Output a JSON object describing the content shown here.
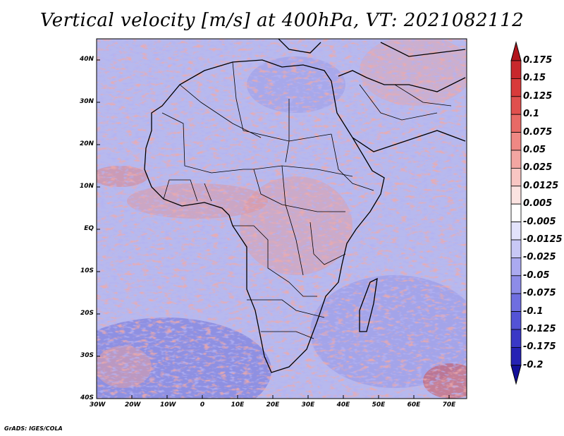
{
  "title": "Vertical velocity [m/s] at 400hPa, VT: 2021082112",
  "footer": "GrADS: IGES/COLA",
  "map": {
    "lat_labels": [
      "40N",
      "30N",
      "20N",
      "10N",
      "EQ",
      "10S",
      "20S",
      "30S",
      "40S"
    ],
    "lon_labels": [
      "30W",
      "20W",
      "10W",
      "0",
      "10E",
      "20E",
      "30E",
      "40E",
      "50E",
      "60E",
      "70E"
    ],
    "lat_range": [
      -40,
      45
    ],
    "lon_range": [
      -30,
      75
    ]
  },
  "colorbar": {
    "labels": [
      "0.175",
      "0.15",
      "0.125",
      "0.1",
      "0.075",
      "0.05",
      "0.025",
      "0.0125",
      "0.005",
      "-0.005",
      "-0.0125",
      "-0.025",
      "-0.05",
      "-0.075",
      "-0.1",
      "-0.125",
      "-0.175",
      "-0.2"
    ],
    "colors": [
      "#b2151d",
      "#c8282c",
      "#d83b3b",
      "#e0504e",
      "#e86a66",
      "#ef8884",
      "#f3a6a2",
      "#f8c6c3",
      "#fbe3e1",
      "#ffffff",
      "#e3e3fb",
      "#c8c8f6",
      "#abaaf0",
      "#8d8ce8",
      "#6f6ee0",
      "#5453d6",
      "#3a38c6",
      "#2622b4",
      "#14109a"
    ]
  }
}
